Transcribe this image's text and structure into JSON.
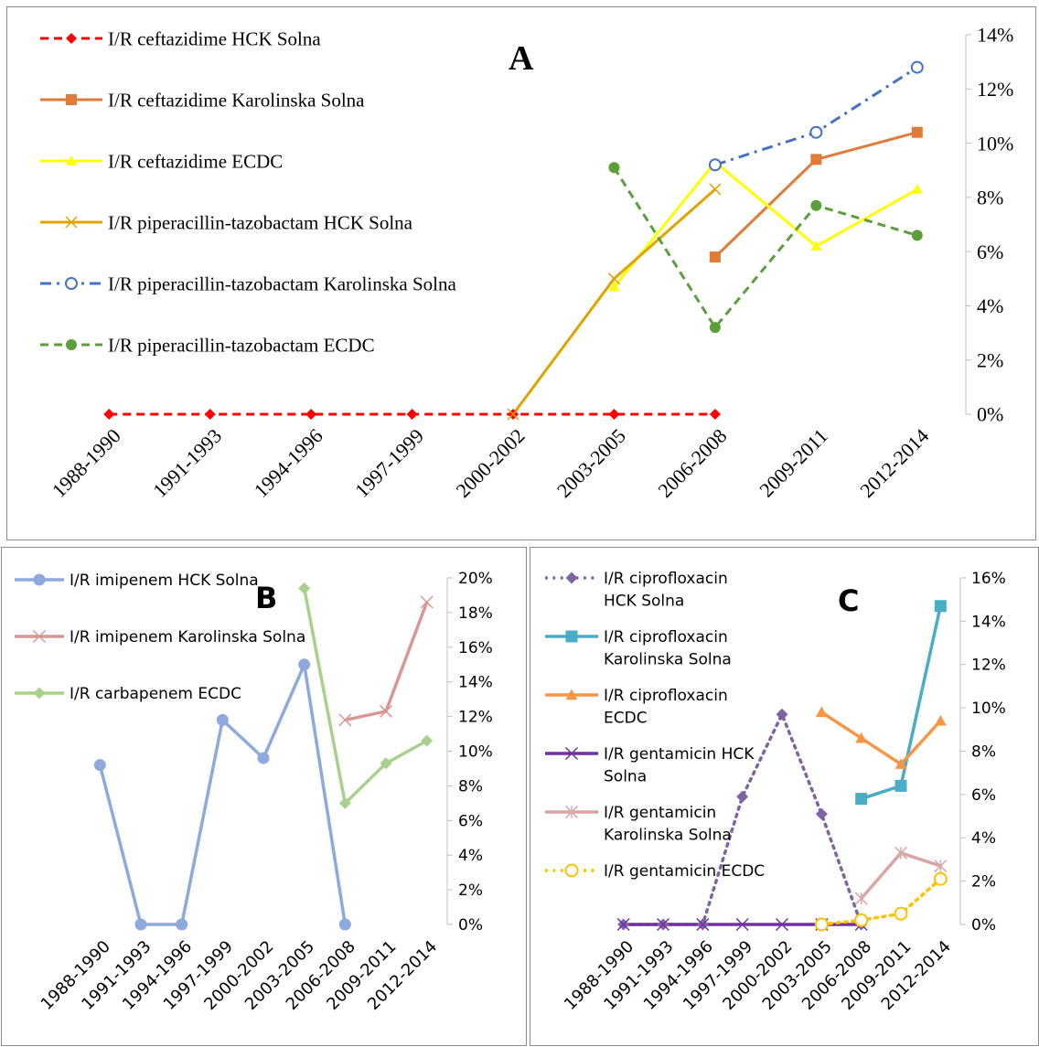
{
  "chart_data": [
    {
      "panel_label": "A",
      "type": "line",
      "categories": [
        "1988-1990",
        "1991-1993",
        "1994-1996",
        "1997-1999",
        "2000-2002",
        "2003-2005",
        "2006-2008",
        "2009-2011",
        "2012-2014"
      ],
      "ylim": [
        0,
        14
      ],
      "yticks": [
        "0%",
        "2%",
        "4%",
        "6%",
        "8%",
        "10%",
        "12%",
        "14%"
      ],
      "series": [
        {
          "name": "I/R ceftazidime HCK Solna",
          "values": [
            0,
            0,
            0,
            0,
            0,
            0,
            0,
            null,
            null
          ],
          "color": "#ff0000",
          "dash": "dashed",
          "marker": "diamond"
        },
        {
          "name": "I/R ceftazidime Karolinska Solna",
          "values": [
            null,
            null,
            null,
            null,
            null,
            null,
            5.8,
            9.4,
            10.4
          ],
          "color": "#e07b39",
          "dash": "solid",
          "marker": "square"
        },
        {
          "name": "I/R ceftazidime ECDC",
          "values": [
            null,
            null,
            null,
            null,
            null,
            4.7,
            9.3,
            6.2,
            8.3
          ],
          "color": "#ffff00",
          "dash": "solid",
          "marker": "triangle"
        },
        {
          "name": "I/R piperacillin-tazobactam HCK Solna",
          "values": [
            null,
            null,
            null,
            null,
            0,
            5.0,
            8.3,
            null,
            null
          ],
          "color": "#e0a400",
          "dash": "solid",
          "marker": "x"
        },
        {
          "name": "I/R piperacillin-tazobactam Karolinska Solna",
          "values": [
            null,
            null,
            null,
            null,
            null,
            null,
            9.2,
            10.4,
            12.8
          ],
          "color": "#4472c4",
          "dash": "dashdot",
          "marker": "opencircle"
        },
        {
          "name": "I/R piperacillin-tazobactam ECDC",
          "values": [
            null,
            null,
            null,
            null,
            null,
            9.1,
            3.2,
            7.7,
            6.6
          ],
          "color": "#5a9f3c",
          "dash": "dashed",
          "marker": "circle"
        }
      ]
    },
    {
      "panel_label": "B",
      "type": "line",
      "categories": [
        "1988-1990",
        "1991-1993",
        "1994-1996",
        "1997-1999",
        "2000-2002",
        "2003-2005",
        "2006-2008",
        "2009-2011",
        "2012-2014"
      ],
      "ylim": [
        0,
        20
      ],
      "yticks": [
        "0%",
        "2%",
        "4%",
        "6%",
        "8%",
        "10%",
        "12%",
        "14%",
        "16%",
        "18%",
        "20%"
      ],
      "series": [
        {
          "name": "I/R imipenem HCK Solna",
          "values": [
            9.2,
            0,
            0,
            11.8,
            9.6,
            15.0,
            0,
            null,
            null
          ],
          "color": "#8ea9db",
          "dash": "solid",
          "marker": "circle"
        },
        {
          "name": "I/R imipenem Karolinska Solna",
          "values": [
            null,
            null,
            null,
            null,
            null,
            null,
            11.8,
            12.3,
            18.6
          ],
          "color": "#d99694",
          "dash": "solid",
          "marker": "x"
        },
        {
          "name": "I/R carbapenem ECDC",
          "values": [
            null,
            null,
            null,
            null,
            null,
            19.4,
            7.0,
            9.3,
            10.6
          ],
          "color": "#a9d18e",
          "dash": "solid",
          "marker": "diamond"
        }
      ]
    },
    {
      "panel_label": "C",
      "type": "line",
      "categories": [
        "1988-1990",
        "1991-1993",
        "1994-1996",
        "1997-1999",
        "2000-2002",
        "2003-2005",
        "2006-2008",
        "2009-2011",
        "2012-2014"
      ],
      "ylim": [
        0,
        16
      ],
      "yticks": [
        "0%",
        "2%",
        "4%",
        "6%",
        "8%",
        "10%",
        "12%",
        "14%",
        "16%"
      ],
      "series": [
        {
          "name": "I/R ciprofloxacin HCK Solna",
          "values": [
            0,
            0,
            0,
            5.9,
            9.7,
            5.1,
            0,
            null,
            null
          ],
          "color": "#8064a2",
          "dash": "dotted",
          "marker": "diamond"
        },
        {
          "name": "I/R ciprofloxacin Karolinska Solna",
          "values": [
            null,
            null,
            null,
            null,
            null,
            null,
            5.8,
            6.4,
            14.7
          ],
          "color": "#4bacc6",
          "dash": "solid",
          "marker": "square"
        },
        {
          "name": "I/R ciprofloxacin ECDC",
          "values": [
            null,
            null,
            null,
            null,
            null,
            9.8,
            8.6,
            7.4,
            9.4
          ],
          "color": "#f79646",
          "dash": "solid",
          "marker": "triangle"
        },
        {
          "name": "I/R gentamicin HCK Solna",
          "values": [
            0,
            0,
            0,
            0,
            0,
            0,
            0,
            null,
            null
          ],
          "color": "#7030a0",
          "dash": "solid",
          "marker": "x"
        },
        {
          "name": "I/R gentamicin Karolinska Solna",
          "values": [
            null,
            null,
            null,
            null,
            null,
            null,
            1.2,
            3.3,
            2.7
          ],
          "color": "#d9a5a5",
          "dash": "solid",
          "marker": "asterisk"
        },
        {
          "name": "I/R gentamicin ECDC",
          "values": [
            null,
            null,
            null,
            null,
            null,
            0,
            0.2,
            0.5,
            2.1
          ],
          "color": "#ffc000",
          "dash": "dotted",
          "marker": "opencircle"
        }
      ]
    }
  ]
}
